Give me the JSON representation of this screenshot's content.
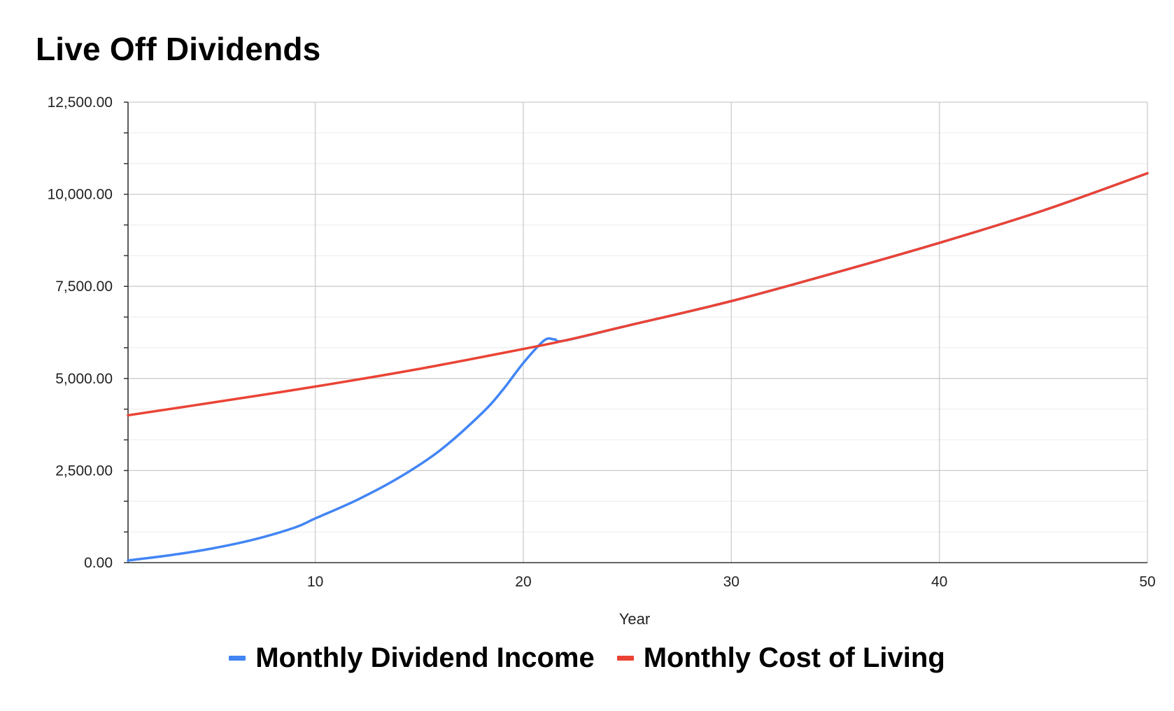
{
  "chart_data": {
    "type": "line",
    "title": "Live Off Dividends",
    "xlabel": "Year",
    "ylabel": "",
    "xlim": [
      1,
      50
    ],
    "ylim": [
      0,
      12500
    ],
    "x_ticks": [
      10,
      20,
      30,
      40,
      50
    ],
    "y_ticks": [
      0,
      2500,
      5000,
      7500,
      10000,
      12500
    ],
    "y_tick_labels": [
      "0.00",
      "2,500.00",
      "5,000.00",
      "7,500.00",
      "10,000.00",
      "12,500.00"
    ],
    "grid": true,
    "legend_position": "bottom",
    "series": [
      {
        "name": "Monthly Dividend Income",
        "color": "#4285f4",
        "points": [
          [
            1,
            60
          ],
          [
            3,
            200
          ],
          [
            5,
            380
          ],
          [
            7,
            620
          ],
          [
            9,
            950
          ],
          [
            10,
            1200
          ],
          [
            12,
            1700
          ],
          [
            14,
            2300
          ],
          [
            16,
            3050
          ],
          [
            18,
            4050
          ],
          [
            19,
            4680
          ],
          [
            20,
            5420
          ],
          [
            21,
            6030
          ],
          [
            21.5,
            6060
          ],
          [
            22,
            6030
          ],
          [
            25,
            6430
          ],
          [
            30,
            7100
          ],
          [
            35,
            7870
          ],
          [
            40,
            8680
          ],
          [
            45,
            9560
          ],
          [
            50,
            10570
          ]
        ]
      },
      {
        "name": "Monthly Cost of Living",
        "color": "#ea4335",
        "points": [
          [
            1,
            4000
          ],
          [
            5,
            4340
          ],
          [
            10,
            4780
          ],
          [
            15,
            5260
          ],
          [
            20,
            5800
          ],
          [
            22,
            6030
          ],
          [
            25,
            6430
          ],
          [
            30,
            7100
          ],
          [
            35,
            7870
          ],
          [
            40,
            8680
          ],
          [
            45,
            9560
          ],
          [
            50,
            10570
          ]
        ]
      }
    ]
  }
}
